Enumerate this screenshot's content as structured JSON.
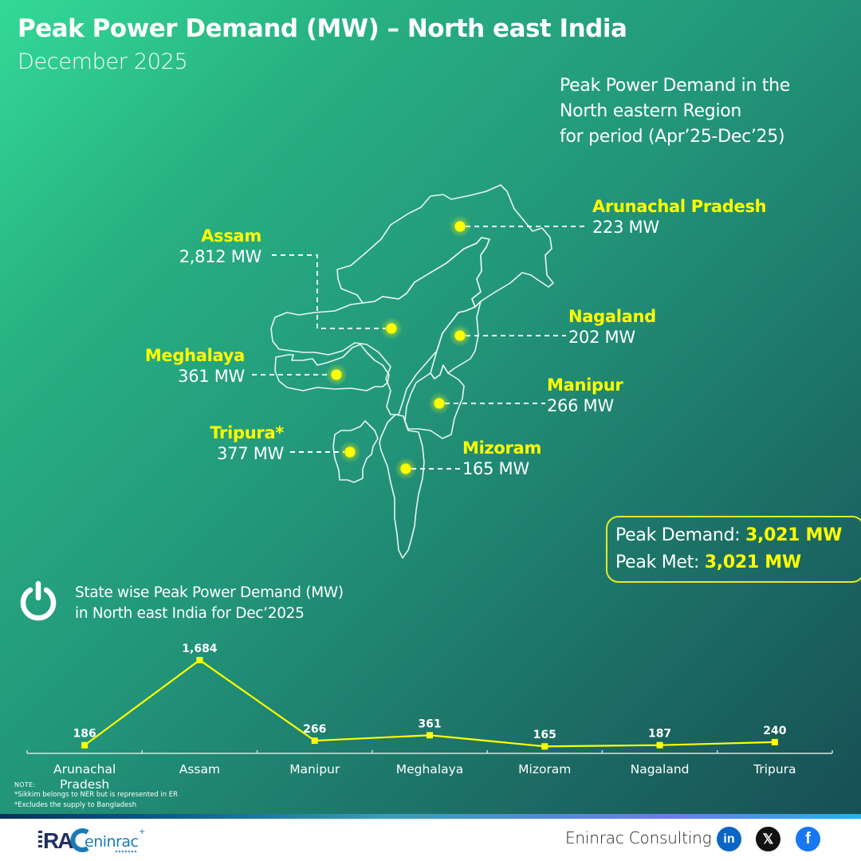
{
  "header": {
    "title": "Peak Power Demand (MW) – North east India",
    "subtitle": "December 2025"
  },
  "period_note": {
    "line1": "Peak Power Demand in the",
    "line2": "North eastern Region",
    "line3": "for period (Apr’25-Dec’25)"
  },
  "map_states": [
    {
      "name": "Arunachal Pradesh",
      "value": "223 MW"
    },
    {
      "name": "Assam",
      "value": "2,812 MW"
    },
    {
      "name": "Nagaland",
      "value": "202 MW"
    },
    {
      "name": "Meghalaya",
      "value": "361 MW"
    },
    {
      "name": "Manipur",
      "value": "266 MW"
    },
    {
      "name": "Tripura*",
      "value": "377 MW"
    },
    {
      "name": "Mizoram",
      "value": "165 MW"
    }
  ],
  "summary": {
    "peak_demand_label": "Peak Demand:",
    "peak_demand_value": "3,021 MW",
    "peak_met_label": "Peak Met:",
    "peak_met_value": "3,021 MW"
  },
  "chart_section": {
    "icon": "power-icon",
    "title_line1": "State wise Peak Power Demand (MW)",
    "title_line2": "in North east India for Dec’2025"
  },
  "chart_data": {
    "type": "line",
    "title": "State wise Peak Power Demand (MW) in North east India for Dec’2025",
    "xlabel": "",
    "ylabel": "Peak Power Demand (MW)",
    "categories": [
      "Arunachal Pradesh",
      "Assam",
      "Manipur",
      "Meghalaya",
      "Mizoram",
      "Nagaland",
      "Tripura"
    ],
    "series": [
      {
        "name": "Peak Power Demand (MW)",
        "values": [
          186,
          1684,
          266,
          361,
          165,
          187,
          240
        ],
        "color": "#ffff00"
      }
    ],
    "value_labels": [
      "186",
      "1,684",
      "266",
      "361",
      "165",
      "187",
      "240"
    ],
    "grid": false,
    "legend": "none"
  },
  "notes": {
    "heading": "NOTE:",
    "line1": "*Sikkim belongs to NER but is represented in ER",
    "line2": "*Excludes the supply to Bangladesh"
  },
  "footer": {
    "brand": "Eninrac Consulting",
    "logo_text": "RAC eninrac",
    "social": [
      {
        "name": "linkedin",
        "glyph": "in"
      },
      {
        "name": "x",
        "glyph": "𝕏"
      },
      {
        "name": "facebook",
        "glyph": "f"
      }
    ]
  },
  "colors": {
    "accent_yellow": "#ffff00",
    "bg_start": "#33d996",
    "bg_end": "#174f55",
    "linkedin": "#0a66c2",
    "facebook": "#1877f2"
  }
}
